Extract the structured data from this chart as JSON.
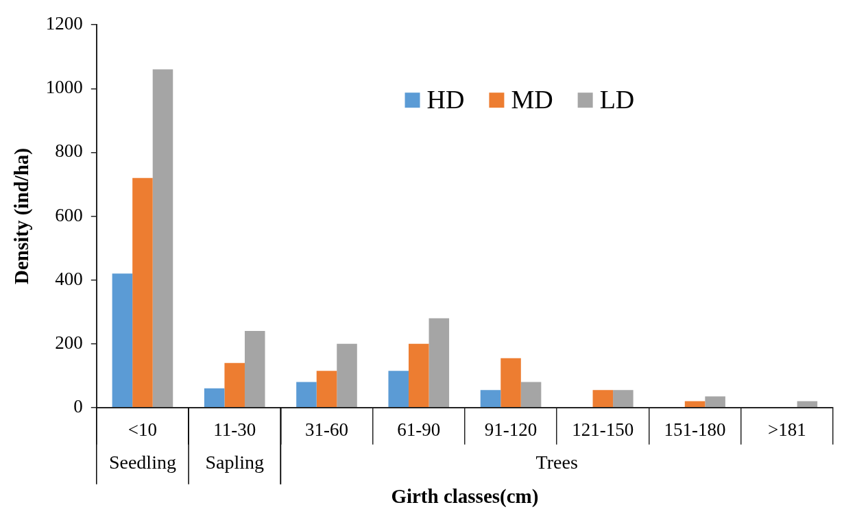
{
  "chart_data": {
    "type": "bar",
    "xlabel": "Girth classes(cm)",
    "ylabel": "Density (ind/ha)",
    "categories": [
      "<10",
      "11-30",
      "31-60",
      "61-90",
      "91-120",
      "121-150",
      "151-180",
      ">181"
    ],
    "series": [
      {
        "name": "HD",
        "color": "#5b9bd5",
        "values": [
          420,
          60,
          80,
          115,
          55,
          0,
          0,
          0
        ]
      },
      {
        "name": "MD",
        "color": "#ed7d31",
        "values": [
          720,
          140,
          115,
          200,
          155,
          55,
          20,
          0
        ]
      },
      {
        "name": "LD",
        "color": "#a5a5a5",
        "values": [
          1060,
          240,
          200,
          280,
          80,
          55,
          35,
          20
        ]
      }
    ],
    "ylim": [
      0,
      1200
    ],
    "yticks": [
      0,
      200,
      400,
      600,
      800,
      1000,
      1200
    ],
    "grid": false,
    "legend": "top",
    "annotations": [
      "Seedling",
      "Sapling",
      "Trees"
    ]
  }
}
